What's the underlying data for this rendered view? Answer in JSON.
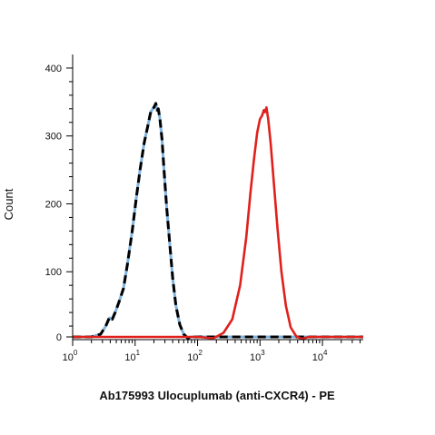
{
  "chart_data": {
    "type": "line",
    "title": "",
    "xlabel": "Ab175993 Ulocuplumab (anti-CXCR4) - PE",
    "ylabel": "Count",
    "x_scale": "log",
    "xlim": [
      1,
      45000
    ],
    "ylim": [
      0,
      420
    ],
    "x_ticks": [
      1,
      10,
      100,
      1000,
      10000
    ],
    "x_tick_labels": [
      {
        "base": "10",
        "exp": "0"
      },
      {
        "base": "10",
        "exp": "1"
      },
      {
        "base": "10",
        "exp": "2"
      },
      {
        "base": "10",
        "exp": "3"
      },
      {
        "base": "10",
        "exp": "4"
      }
    ],
    "y_ticks": [
      0,
      100,
      200,
      300,
      400
    ],
    "y_tick_labels": [
      "0",
      "100",
      "200",
      "300",
      "400"
    ],
    "grid": false,
    "series": [
      {
        "color": "#000000",
        "style": "dashed",
        "x": [
          1,
          2,
          2.8,
          3.4,
          3.9,
          4.3,
          4.8,
          5.5,
          6.5,
          7.5,
          9,
          10.5,
          12,
          14,
          16,
          18,
          20,
          21.5,
          22.5,
          23.5,
          25,
          27,
          29,
          32,
          36,
          40,
          45,
          52,
          60,
          70,
          80,
          100,
          1000,
          45000
        ],
        "y": [
          0,
          0,
          8,
          20,
          33,
          30,
          40,
          55,
          75,
          110,
          160,
          210,
          250,
          290,
          315,
          338,
          342,
          348,
          338,
          340,
          325,
          295,
          250,
          195,
          140,
          90,
          50,
          22,
          8,
          2,
          0,
          0,
          0,
          0
        ]
      },
      {
        "color": "#7fb3e0",
        "style": "solid",
        "x": [
          1,
          2,
          2.8,
          3.4,
          3.9,
          4.3,
          4.8,
          5.5,
          6.5,
          7.5,
          9,
          10.5,
          12,
          14,
          16,
          18,
          20,
          21.5,
          22.5,
          23.5,
          25,
          27,
          29,
          32,
          36,
          40,
          45,
          52,
          60,
          70,
          80,
          100,
          1000,
          45000
        ],
        "y": [
          0,
          0,
          8,
          20,
          32,
          30,
          40,
          55,
          75,
          110,
          160,
          210,
          250,
          290,
          315,
          336,
          342,
          346,
          338,
          340,
          325,
          295,
          250,
          195,
          140,
          90,
          50,
          22,
          8,
          2,
          0,
          0,
          0,
          0
        ]
      },
      {
        "color": "#e0201b",
        "style": "solid",
        "x": [
          1,
          100,
          180,
          260,
          360,
          480,
          600,
          700,
          800,
          900,
          1000,
          1080,
          1150,
          1200,
          1270,
          1350,
          1480,
          1650,
          1900,
          2200,
          2600,
          3100,
          3800,
          4700,
          6000,
          45000
        ],
        "y": [
          0,
          0,
          2,
          10,
          30,
          80,
          150,
          215,
          265,
          305,
          325,
          330,
          338,
          335,
          342,
          325,
          290,
          235,
          165,
          100,
          50,
          18,
          5,
          1,
          0,
          0
        ]
      }
    ]
  }
}
